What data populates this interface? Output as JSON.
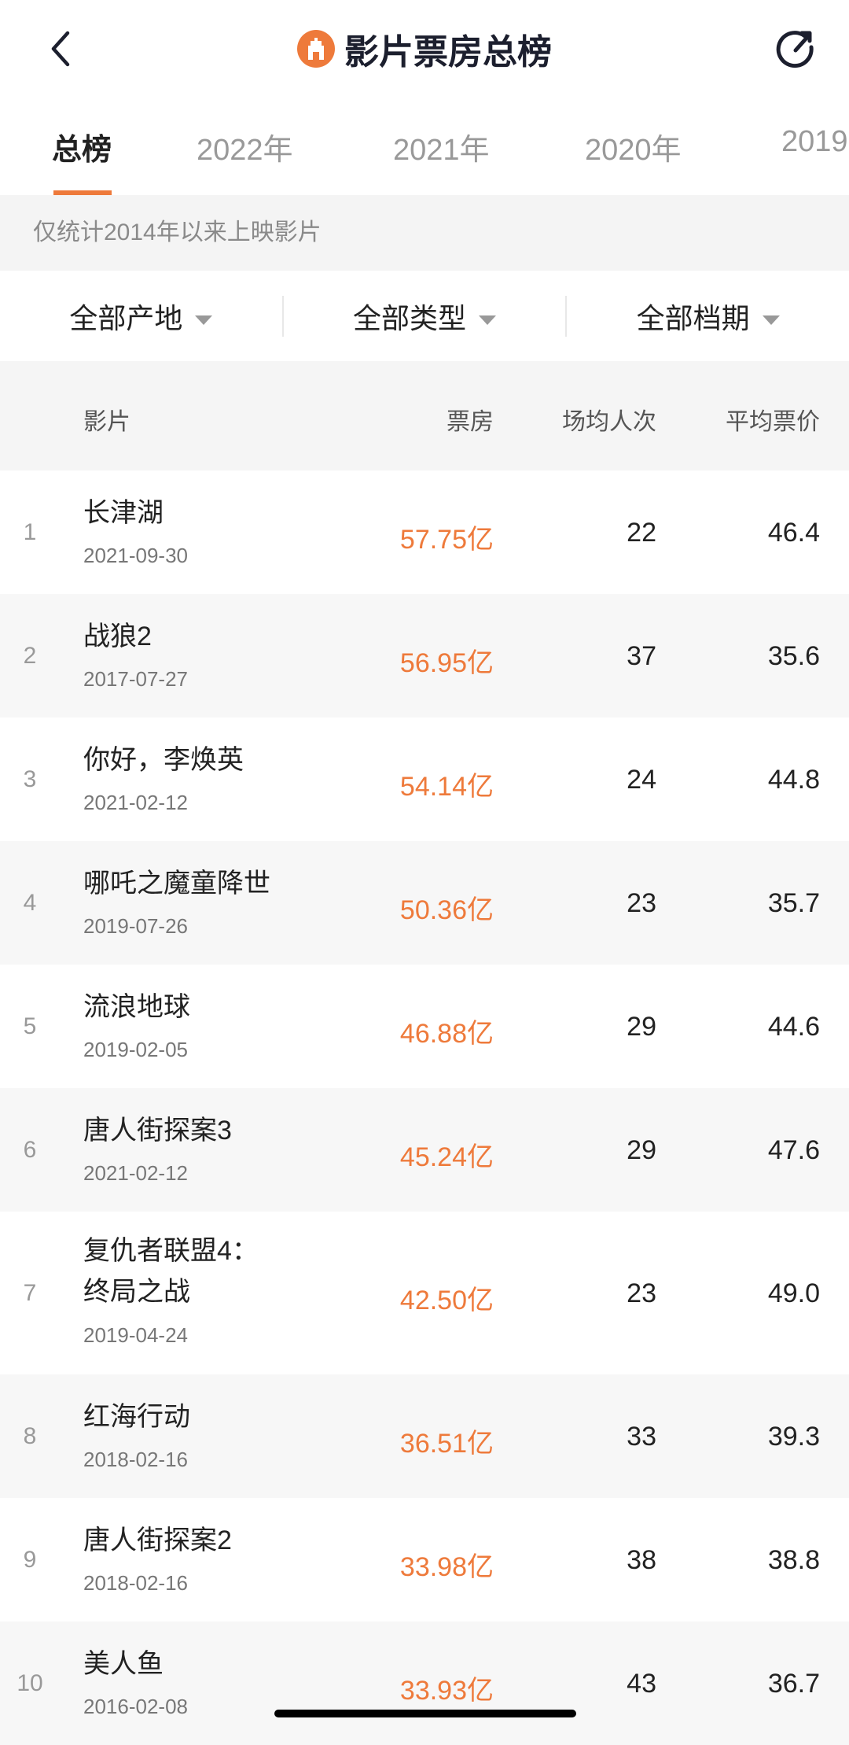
{
  "header": {
    "title": "影片票房总榜",
    "back_icon": "chevron-left-icon",
    "refresh_icon": "refresh-icon",
    "accent": "#ee7a3b"
  },
  "tabs": [
    "总榜",
    "2022年",
    "2021年",
    "2020年",
    "2019"
  ],
  "note": "仅统计2014年以来上映影片",
  "filters": [
    "全部产地",
    "全部类型",
    "全部档期"
  ],
  "columns": {
    "film": "影片",
    "box_office": "票房",
    "avg_attendance": "场均人次",
    "avg_price": "平均票价"
  },
  "rows": [
    {
      "rank": "1",
      "name": "长津湖",
      "date": "2021-09-30",
      "box_office": "57.75亿",
      "avg": "22",
      "price": "46.4"
    },
    {
      "rank": "2",
      "name": "战狼2",
      "date": "2017-07-27",
      "box_office": "56.95亿",
      "avg": "37",
      "price": "35.6"
    },
    {
      "rank": "3",
      "name": "你好，李焕英",
      "date": "2021-02-12",
      "box_office": "54.14亿",
      "avg": "24",
      "price": "44.8"
    },
    {
      "rank": "4",
      "name": "哪吒之魔童降世",
      "date": "2019-07-26",
      "box_office": "50.36亿",
      "avg": "23",
      "price": "35.7"
    },
    {
      "rank": "5",
      "name": "流浪地球",
      "date": "2019-02-05",
      "box_office": "46.88亿",
      "avg": "29",
      "price": "44.6"
    },
    {
      "rank": "6",
      "name": "唐人街探案3",
      "date": "2021-02-12",
      "box_office": "45.24亿",
      "avg": "29",
      "price": "47.6"
    },
    {
      "rank": "7",
      "name": "复仇者联盟4：",
      "name2": "终局之战",
      "date": "2019-04-24",
      "box_office": "42.50亿",
      "avg": "23",
      "price": "49.0"
    },
    {
      "rank": "8",
      "name": "红海行动",
      "date": "2018-02-16",
      "box_office": "36.51亿",
      "avg": "33",
      "price": "39.3"
    },
    {
      "rank": "9",
      "name": "唐人街探案2",
      "date": "2018-02-16",
      "box_office": "33.98亿",
      "avg": "38",
      "price": "38.8"
    },
    {
      "rank": "10",
      "name": "美人鱼",
      "date": "2016-02-08",
      "box_office": "33.93亿",
      "avg": "43",
      "price": "36.7"
    }
  ]
}
